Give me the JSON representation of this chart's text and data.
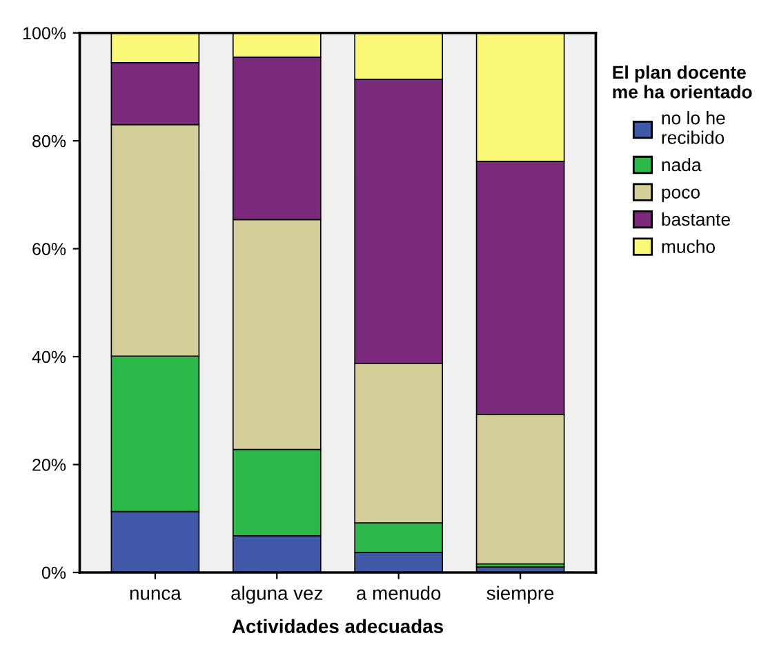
{
  "chart_data": {
    "type": "bar",
    "stacked": true,
    "xlabel": "Actividades adecuadas",
    "legend_title": "El plan docente\nme ha orientado",
    "legend": "right",
    "categories": [
      "nunca",
      "alguna vez",
      "a menudo",
      "siempre"
    ],
    "series": [
      {
        "name": "no lo he\nrecibido",
        "color": "#3f58a8",
        "values": [
          11.3,
          6.8,
          3.7,
          1.0
        ]
      },
      {
        "name": "nada",
        "color": "#2db84a",
        "values": [
          28.8,
          16.0,
          5.5,
          0.6
        ]
      },
      {
        "name": "poco",
        "color": "#d4cf98",
        "values": [
          42.9,
          42.6,
          29.5,
          27.7
        ]
      },
      {
        "name": "bastante",
        "color": "#7b2a7b",
        "values": [
          11.5,
          30.1,
          52.7,
          46.9
        ]
      },
      {
        "name": "mucho",
        "color": "#fbf877",
        "values": [
          5.5,
          4.5,
          8.6,
          23.8
        ]
      }
    ],
    "ylim": [
      0,
      100
    ],
    "yticks": [
      {
        "value": 0,
        "label": "0%"
      },
      {
        "value": 20,
        "label": "20%"
      },
      {
        "value": 40,
        "label": "40%"
      },
      {
        "value": 60,
        "label": "60%"
      },
      {
        "value": 80,
        "label": "80%"
      },
      {
        "value": 100,
        "label": "100%"
      }
    ],
    "grid": false
  }
}
